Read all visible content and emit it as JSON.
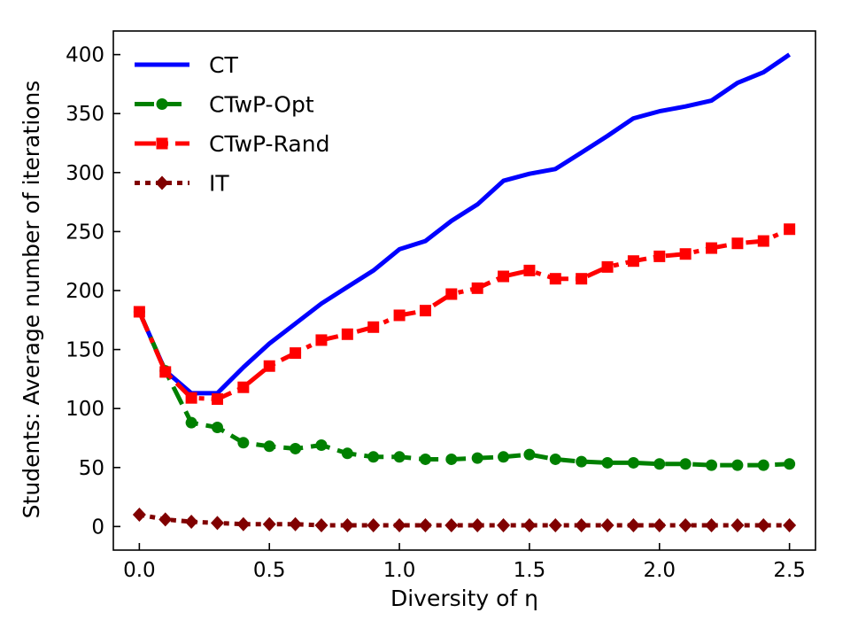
{
  "chart_data": {
    "type": "line",
    "xlabel": "Diversity of η",
    "ylabel": "Students: Average number of iterations",
    "xlim": [
      -0.1,
      2.6
    ],
    "ylim": [
      -20,
      420
    ],
    "x_ticks": [
      0.0,
      0.5,
      1.0,
      1.5,
      2.0,
      2.5
    ],
    "y_ticks": [
      0,
      50,
      100,
      150,
      200,
      250,
      300,
      350,
      400
    ],
    "x_tick_labels": [
      "0.0",
      "0.5",
      "1.0",
      "1.5",
      "2.0",
      "2.5"
    ],
    "y_tick_labels": [
      "0",
      "50",
      "100",
      "150",
      "200",
      "250",
      "300",
      "350",
      "400"
    ],
    "grid": false,
    "legend_position": "top-left",
    "x": [
      0.0,
      0.1,
      0.2,
      0.3,
      0.4,
      0.5,
      0.6,
      0.7,
      0.8,
      0.9,
      1.0,
      1.1,
      1.2,
      1.3,
      1.4,
      1.5,
      1.6,
      1.7,
      1.8,
      1.9,
      2.0,
      2.1,
      2.2,
      2.3,
      2.4,
      2.5
    ],
    "series": [
      {
        "name": "CT",
        "color": "#0000ff",
        "style": "solid",
        "marker": "none",
        "values": [
          182,
          132,
          113,
          113,
          135,
          155,
          172,
          189,
          203,
          217,
          235,
          242,
          259,
          273,
          293,
          299,
          303,
          317,
          331,
          346,
          352,
          356,
          361,
          376,
          385,
          400
        ]
      },
      {
        "name": "CTwP-Opt",
        "color": "#008000",
        "style": "dashed",
        "marker": "circle",
        "values": [
          182,
          132,
          88,
          84,
          71,
          68,
          66,
          69,
          62,
          59,
          59,
          57,
          57,
          58,
          59,
          61,
          57,
          55,
          54,
          54,
          53,
          53,
          52,
          52,
          52,
          53
        ]
      },
      {
        "name": "CTwP-Rand",
        "color": "#ff0000",
        "style": "dashdot",
        "marker": "square",
        "values": [
          182,
          131,
          109,
          108,
          118,
          136,
          147,
          158,
          163,
          169,
          179,
          183,
          197,
          202,
          212,
          217,
          210,
          210,
          220,
          225,
          229,
          231,
          236,
          240,
          242,
          252
        ]
      },
      {
        "name": "IT",
        "color": "#800000",
        "style": "dotted",
        "marker": "diamond",
        "values": [
          10,
          6,
          4,
          3,
          2,
          2,
          2,
          1,
          1,
          1,
          1,
          1,
          1,
          1,
          1,
          1,
          1,
          1,
          1,
          1,
          1,
          1,
          1,
          1,
          1,
          1
        ]
      }
    ]
  }
}
